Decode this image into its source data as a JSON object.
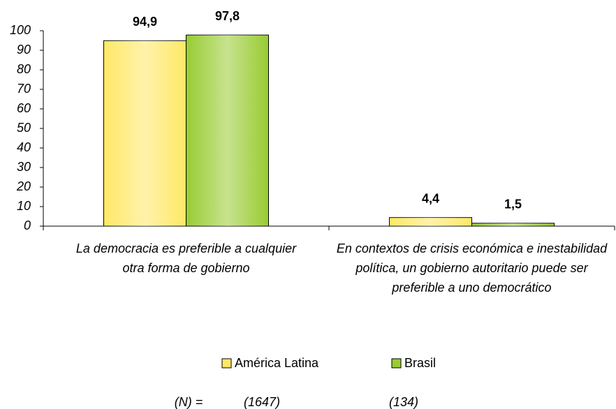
{
  "chart_data": {
    "type": "bar",
    "categories": [
      "La democracia es preferible a cualquier otra forma de gobierno",
      "En contextos de crisis económica e inestabilidad política, un gobierno autoritario puede ser preferible a uno democrático"
    ],
    "series": [
      {
        "name": "América Latina",
        "color": "#ffe866",
        "values": [
          94.9,
          4.4
        ],
        "value_labels": [
          "94,9",
          "4,4"
        ]
      },
      {
        "name": "Brasil",
        "color": "#99cc33",
        "values": [
          97.8,
          1.5
        ],
        "value_labels": [
          "97,8",
          "1,5"
        ]
      }
    ],
    "ylim": [
      0,
      100
    ],
    "yticks": [
      0,
      10,
      20,
      30,
      40,
      50,
      60,
      70,
      80,
      90,
      100
    ],
    "legend": "bottom",
    "sample_sizes": {
      "label": "(N) =",
      "values": [
        "(1647)",
        "(134)"
      ]
    }
  }
}
